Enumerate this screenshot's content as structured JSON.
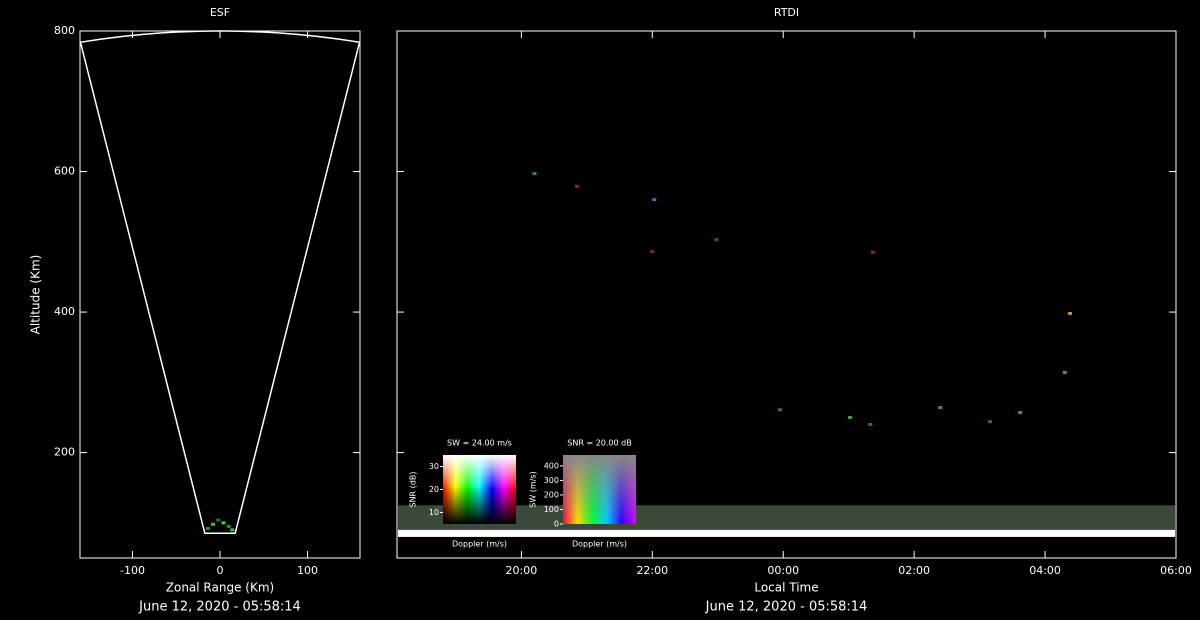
{
  "chart_data": [
    {
      "type": "fan",
      "title": "ESF",
      "xlabel": "Zonal Range (Km)",
      "ylabel": "Altitude (Km)",
      "footer": "June 12, 2020 - 05:58:14",
      "xlim": [
        -160,
        160
      ],
      "ylim": [
        50,
        800
      ],
      "xticks": [
        -100,
        0,
        100
      ],
      "yticks": [
        200,
        400,
        600,
        800
      ],
      "sector": {
        "half_angle": 11.5,
        "range": [
          87,
          800
        ]
      },
      "color": "#ffffff",
      "points": {
        "x": [
          -14,
          -8,
          -2,
          4,
          10,
          14
        ],
        "y": [
          92,
          98,
          104,
          100,
          95,
          90
        ],
        "colors": [
          "#2e8b2e",
          "#3fbf3f",
          "#2a7a2a",
          "#47c947",
          "#2e8b2e",
          "#3fbf3f"
        ]
      }
    },
    {
      "type": "rtdi",
      "title": "RTDI",
      "xlabel": "Local Time",
      "footer": "June 12, 2020 - 05:58:14",
      "xlim": [
        18.1,
        30
      ],
      "ylim": [
        50,
        800
      ],
      "xticks": [
        {
          "value": 20,
          "label": "20:00"
        },
        {
          "value": 22,
          "label": "22:00"
        },
        {
          "value": 24,
          "label": "00:00"
        },
        {
          "value": 26,
          "label": "02:00"
        },
        {
          "value": 28,
          "label": "04:00"
        },
        {
          "value": 30,
          "label": "06:00"
        }
      ],
      "yticks": [
        200,
        400,
        600,
        800
      ],
      "ytick_labels": false,
      "layers": [
        {
          "range": [
            90,
            125
          ],
          "color": "#3c4a3c"
        },
        {
          "range": [
            80,
            90
          ],
          "color": "#ffffff"
        }
      ],
      "points": {
        "x": [
          20.2,
          20.85,
          22.03,
          22.0,
          22.98,
          25.37,
          28.38,
          28.3,
          23.95,
          25.02,
          25.33,
          26.4,
          27.16,
          27.62
        ],
        "y": [
          597,
          579,
          560,
          486,
          503,
          485,
          398,
          314,
          261,
          250,
          240,
          264,
          244,
          257
        ],
        "colors": [
          "#3a8a3a",
          "#8a2a2a",
          "#4a6abf",
          "#8a2a2a",
          "#2a6a2a",
          "#8a2a2a",
          "#c89030",
          "#3fa03f",
          "#2e7a2e",
          "#3fa03f",
          "#2e7a2e",
          "#3fa03f",
          "#2e7a2e",
          "#3fa03f"
        ]
      },
      "insets": [
        {
          "title": "SW = 24.00 m/s",
          "xlabel": "Doppler (m/s)",
          "ylabel": "SNR (dB)",
          "ylim": [
            5,
            35
          ],
          "yticks": [
            10,
            20,
            30
          ]
        },
        {
          "title": "SNR = 20.00 dB",
          "xlabel": "Doppler (m/s)",
          "ylabel": "SW (m/s)",
          "ylim": [
            0,
            475
          ],
          "yticks": [
            0,
            100,
            200,
            300,
            400
          ]
        }
      ]
    }
  ]
}
